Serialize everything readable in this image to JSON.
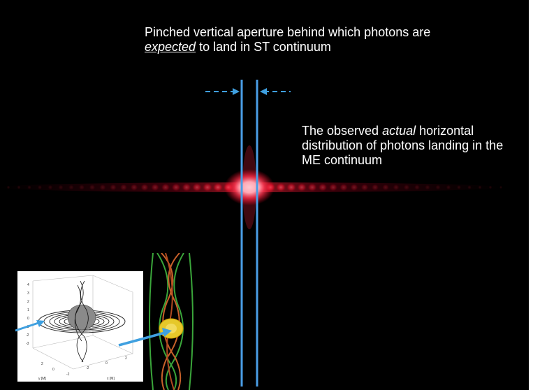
{
  "callout_top": {
    "part1": "Pinched vertical aperture behind which photons are ",
    "emph": "expected",
    "part2": " to land in ST continuum"
  },
  "callout_right": {
    "part1": "The observed ",
    "emph": "actual",
    "part2": " horizontal distribution of photons landing in the ME continuum"
  },
  "plot_inset": {
    "z_ticks": [
      "4",
      "3",
      "2",
      "1",
      "0",
      "-1",
      "-2",
      "-3"
    ],
    "x_axis_label": "x [M]",
    "y_axis_label": "y [M]",
    "x_ticks": [
      "-2",
      "0",
      "2"
    ],
    "y_ticks": [
      "2",
      "0",
      "-2"
    ]
  },
  "colors": {
    "background": "#000000",
    "aperture_line": "#4a9ee6",
    "arrow": "#3fa0e0",
    "fringe": "#ff2a3c",
    "helix_green": "#3aa53a",
    "helix_orange": "#c8612a",
    "sphere": "#e6c82a"
  }
}
